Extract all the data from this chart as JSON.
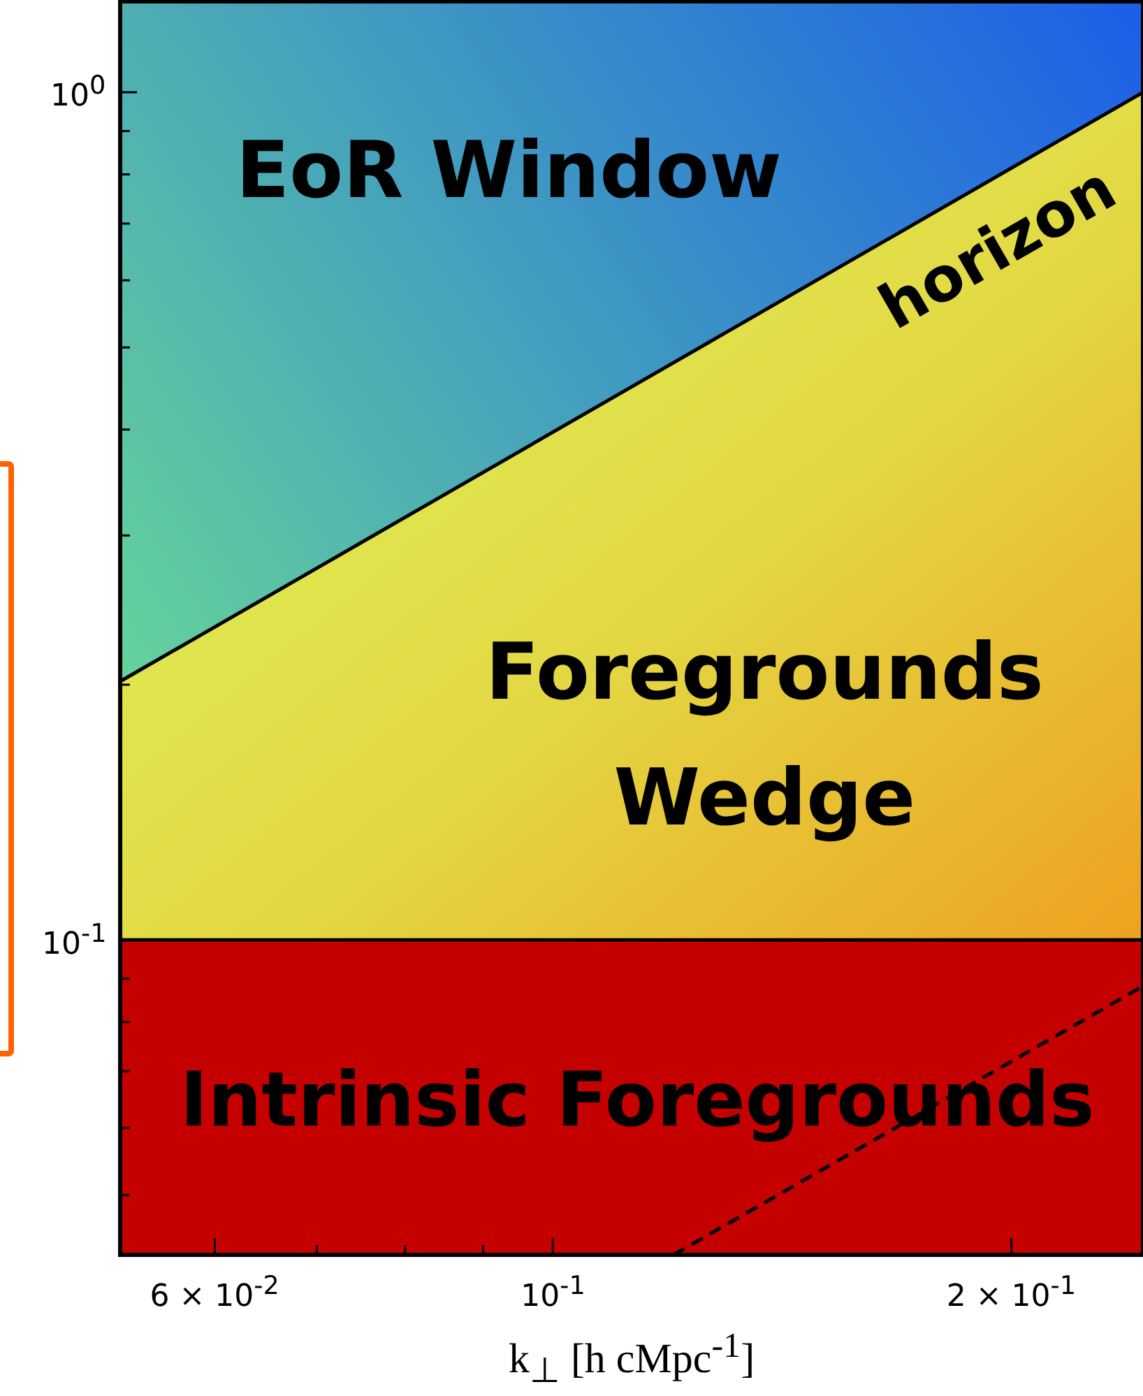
{
  "chart_data": {
    "type": "line",
    "xlabel": "k$_{⊥}$ [h cMpc$^{-1}$]",
    "log": "xy",
    "legend": false,
    "marker": "none",
    "xlim": [
      0.052,
      0.244
    ],
    "ylim": [
      0.0425,
      1.28
    ],
    "xticks": [
      {
        "value": 0.06,
        "label": "6 × 10$^{-2}$"
      },
      {
        "value": 0.07,
        "label": null
      },
      {
        "value": 0.08,
        "label": null
      },
      {
        "value": 0.09,
        "label": null
      },
      {
        "value": 0.1,
        "label": "10$^{-1}$"
      },
      {
        "value": 0.2,
        "label": "2 × 10$^{-1}$"
      }
    ],
    "yticks": [
      {
        "value": 0.05,
        "label": null
      },
      {
        "value": 0.06,
        "label": null
      },
      {
        "value": 0.07,
        "label": null
      },
      {
        "value": 0.08,
        "label": null
      },
      {
        "value": 0.09,
        "label": null
      },
      {
        "value": 0.1,
        "label": "10$^{-1}$"
      },
      {
        "value": 0.2,
        "label": null
      },
      {
        "value": 0.3,
        "label": null
      },
      {
        "value": 0.4,
        "label": null
      },
      {
        "value": 0.5,
        "label": null
      },
      {
        "value": 0.6,
        "label": null
      },
      {
        "value": 0.7,
        "label": null
      },
      {
        "value": 0.8,
        "label": null
      },
      {
        "value": 0.9,
        "label": null
      },
      {
        "value": 1,
        "label": "10$^{0}$"
      }
    ],
    "series": [
      {
        "color": "#000000",
        "x": [
          0.052,
          0.244
        ],
        "values": [
          0.2018,
          1.0
        ],
        "line_style": "solid"
      },
      {
        "color": "#000000",
        "x": [
          0.12,
          0.244
        ],
        "values": [
          0.0425,
          0.0882
        ],
        "line_style": "dashed"
      }
    ],
    "bands": [
      {
        "axis": "y",
        "from": 0.0425,
        "to": 0.1,
        "label": "Intrinsic Foregrounds",
        "color": "#c40000"
      }
    ],
    "annotations": [
      "EoR Window",
      "Foregrounds Wedge",
      "horizon"
    ]
  }
}
